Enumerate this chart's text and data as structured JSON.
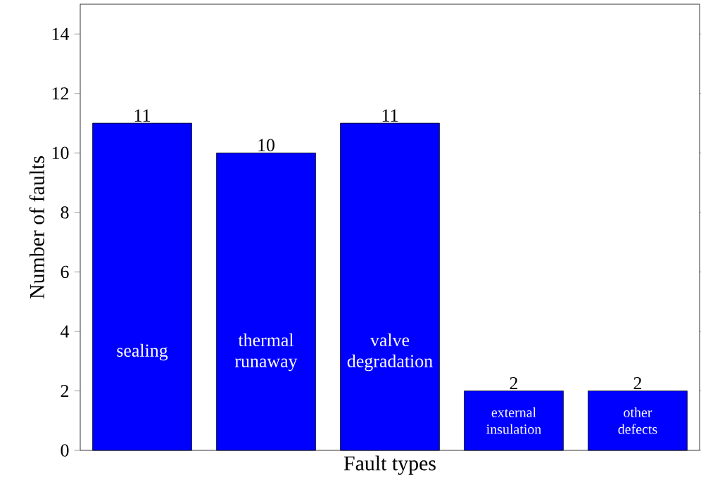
{
  "chart_data": {
    "type": "bar",
    "xlabel": "Fault types",
    "ylabel": "Number of faults",
    "categories": [
      "sealing",
      "thermal runaway",
      "valve degradation",
      "external insulation",
      "other defects"
    ],
    "values": [
      11,
      10,
      11,
      2,
      2
    ],
    "color": "#0000ff",
    "ylim": [
      0,
      15
    ],
    "yticks": [
      0,
      2,
      4,
      6,
      8,
      10,
      12,
      14
    ],
    "data_labels": true
  }
}
